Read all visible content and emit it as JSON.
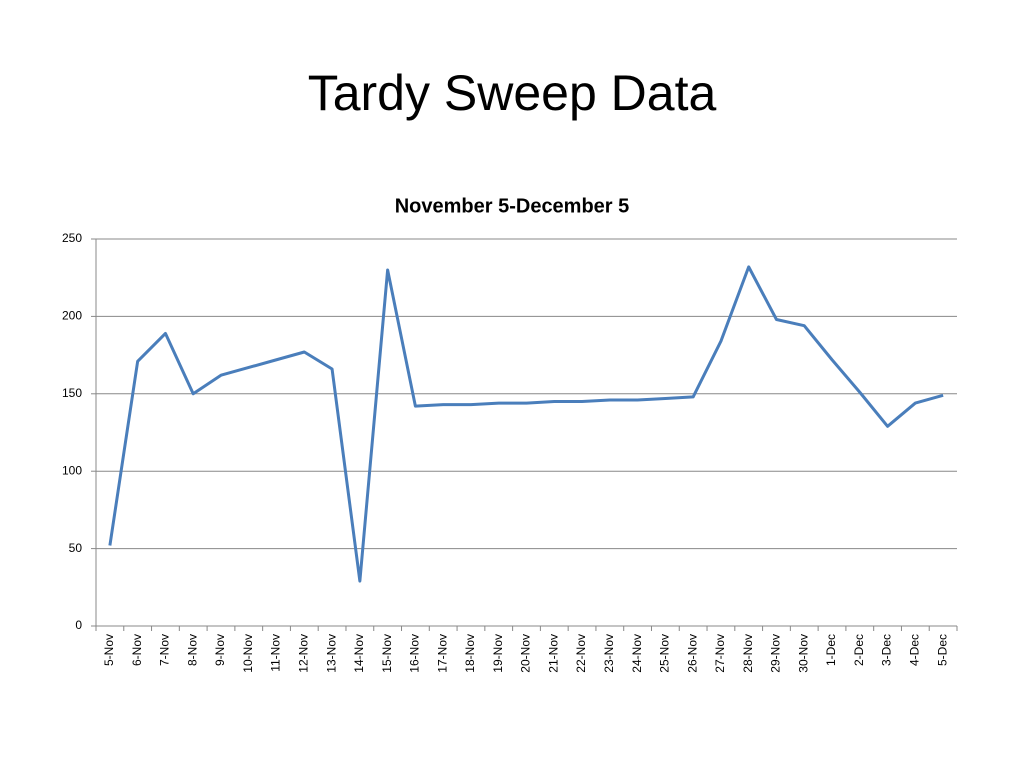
{
  "slide_title": "Tardy Sweep Data",
  "chart_data": {
    "type": "line",
    "title": "November 5-December  5",
    "categories": [
      "5-Nov",
      "6-Nov",
      "7-Nov",
      "8-Nov",
      "9-Nov",
      "10-Nov",
      "11-Nov",
      "12-Nov",
      "13-Nov",
      "14-Nov",
      "15-Nov",
      "16-Nov",
      "17-Nov",
      "18-Nov",
      "19-Nov",
      "20-Nov",
      "21-Nov",
      "22-Nov",
      "23-Nov",
      "24-Nov",
      "25-Nov",
      "26-Nov",
      "27-Nov",
      "28-Nov",
      "29-Nov",
      "30-Nov",
      "1-Dec",
      "2-Dec",
      "3-Dec",
      "4-Dec",
      "5-Dec"
    ],
    "series": [
      {
        "color": "#4a7ebb",
        "values": [
          52,
          171,
          189,
          150,
          162,
          167,
          172,
          177,
          166,
          29,
          230,
          142,
          143,
          143,
          144,
          144,
          145,
          145,
          146,
          146,
          147,
          148,
          184,
          232,
          198,
          194,
          172,
          151,
          129,
          144,
          149
        ]
      }
    ],
    "ylim": [
      0,
      250
    ],
    "yticks": [
      0,
      50,
      100,
      150,
      200,
      250
    ],
    "grid": true
  }
}
